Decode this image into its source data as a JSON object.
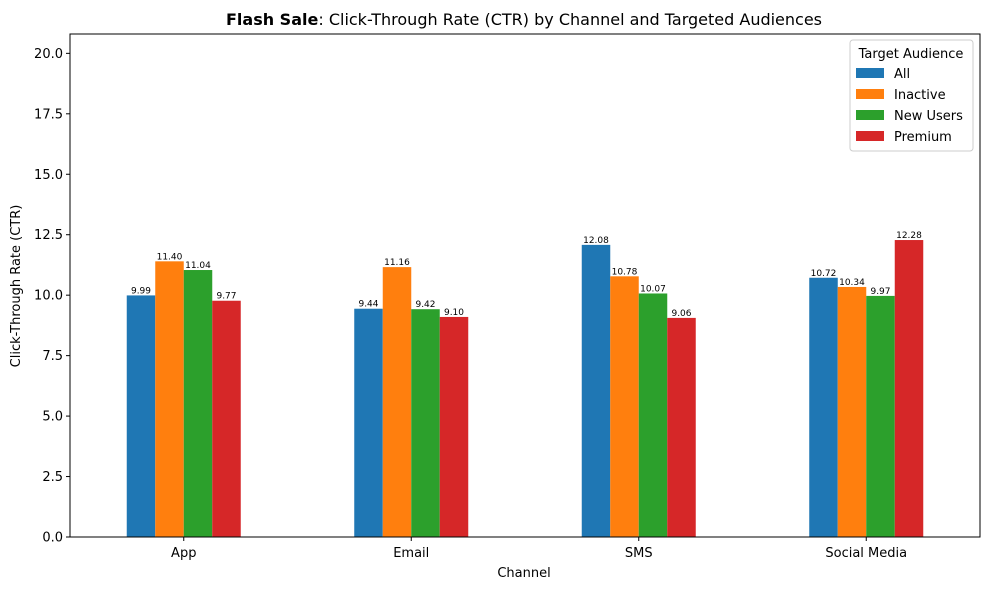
{
  "chart_data": {
    "type": "bar",
    "title_bold": "Flash Sale",
    "title_rest": ": Click-Through Rate (CTR) by Channel and Targeted Audiences",
    "xlabel": "Channel",
    "ylabel": "Click-Through Rate (CTR)",
    "ylim": [
      0,
      20.8
    ],
    "yticks": [
      "0.0",
      "2.5",
      "5.0",
      "7.5",
      "10.0",
      "12.5",
      "15.0",
      "17.5",
      "20.0"
    ],
    "categories": [
      "App",
      "Email",
      "SMS",
      "Social Media"
    ],
    "legend_title": "Target Audience",
    "legend_position": "top-right",
    "grid": false,
    "series": [
      {
        "name": "All",
        "color": "#1f77b4",
        "values": [
          9.99,
          9.44,
          12.08,
          10.72
        ],
        "labels": [
          "9.99",
          "9.44",
          "12.08",
          "10.72"
        ]
      },
      {
        "name": "Inactive",
        "color": "#ff7f0e",
        "values": [
          11.4,
          11.16,
          10.78,
          10.34
        ],
        "labels": [
          "11.40",
          "11.16",
          "10.78",
          "10.34"
        ]
      },
      {
        "name": "New Users",
        "color": "#2ca02c",
        "values": [
          11.04,
          9.42,
          10.07,
          9.97
        ],
        "labels": [
          "11.04",
          "9.42",
          "10.07",
          "9.97"
        ]
      },
      {
        "name": "Premium",
        "color": "#d62728",
        "values": [
          9.77,
          9.1,
          9.06,
          12.28
        ],
        "labels": [
          "9.77",
          "9.10",
          "9.06",
          "12.28"
        ]
      }
    ]
  }
}
